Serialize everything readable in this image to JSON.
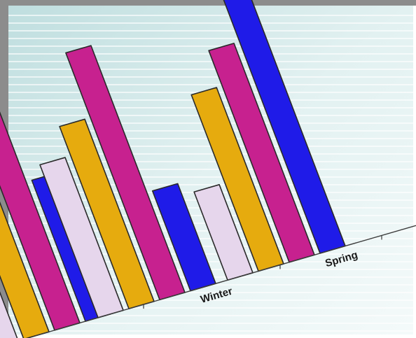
{
  "chart_data": {
    "type": "bar",
    "style": "3d-perspective",
    "categories": [
      "",
      "Winter",
      "Spring"
    ],
    "series": [
      {
        "color": "#e6d6ec",
        "values": [
          25,
          52,
          30
        ]
      },
      {
        "color": "#e6ab0e",
        "values": [
          50,
          62,
          60
        ]
      },
      {
        "color": "#c7218f",
        "values": [
          74,
          84,
          72
        ]
      },
      {
        "color": "#1f1be8",
        "values": [
          48,
          34,
          90
        ]
      }
    ],
    "ylim": [
      0,
      100
    ],
    "grid": true,
    "background": "#dcedef",
    "stroke": "#2a2a2a"
  }
}
